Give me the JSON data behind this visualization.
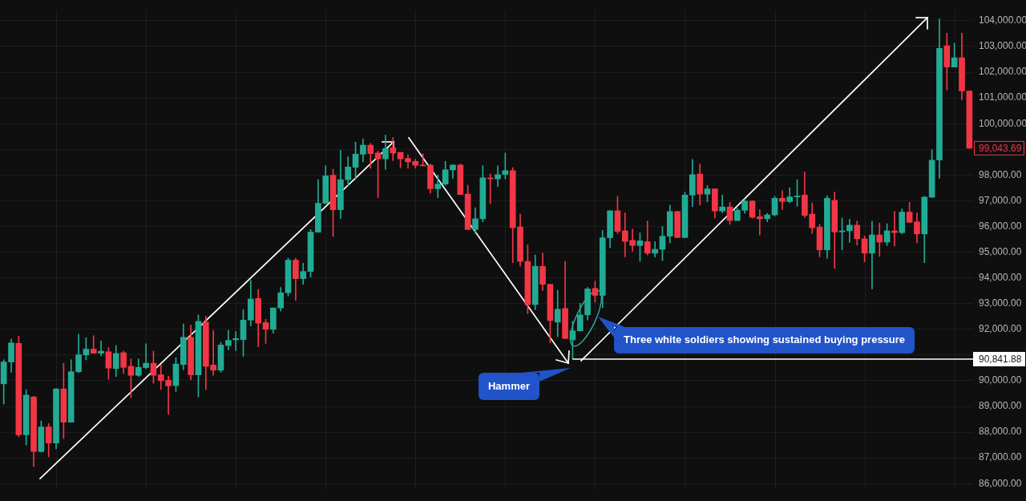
{
  "chart_data": {
    "type": "candlestick",
    "categories": [
      null,
      null,
      null,
      null,
      null,
      null,
      null,
      null,
      null,
      null,
      null,
      null,
      null,
      null,
      null,
      null,
      null,
      null,
      null,
      null,
      null,
      null,
      null,
      null,
      null,
      null,
      null,
      null,
      null,
      null,
      null,
      null,
      null,
      null,
      null,
      null,
      null,
      null,
      null,
      null,
      null,
      null,
      null,
      null,
      null,
      null,
      null,
      null,
      null,
      null,
      null,
      null,
      null,
      null,
      null,
      null,
      null,
      null,
      null,
      null,
      null,
      null,
      null,
      null,
      null,
      null,
      null,
      null,
      null,
      null,
      null,
      null,
      null,
      null,
      null,
      null,
      null,
      null,
      null,
      null,
      null,
      null,
      null,
      null,
      null,
      null,
      null,
      null,
      null,
      null,
      null,
      null,
      null,
      null,
      null,
      null,
      null,
      null,
      null,
      null,
      null,
      null,
      null,
      null,
      null,
      null,
      null,
      null,
      null,
      null,
      null,
      null,
      null,
      null,
      null,
      null,
      null,
      null,
      null,
      null,
      null,
      null,
      null,
      null,
      null,
      null,
      null,
      null,
      null,
      null
    ],
    "ohlc": [
      [
        89880,
        90820,
        89090,
        90730
      ],
      [
        90730,
        91620,
        90330,
        91470
      ],
      [
        91450,
        91740,
        87820,
        87900
      ],
      [
        87900,
        89650,
        87500,
        89440
      ],
      [
        89370,
        89400,
        86660,
        87250
      ],
      [
        87240,
        88440,
        87230,
        88200
      ],
      [
        88200,
        88340,
        87050,
        87580
      ],
      [
        87580,
        89700,
        87350,
        89680
      ],
      [
        89680,
        90680,
        87750,
        88390
      ],
      [
        88390,
        90820,
        88390,
        90350
      ],
      [
        90350,
        91810,
        90310,
        91010
      ],
      [
        91000,
        91670,
        90810,
        91230
      ],
      [
        91230,
        91750,
        91070,
        91070
      ],
      [
        91070,
        91550,
        90970,
        91150
      ],
      [
        91130,
        91290,
        90060,
        90490
      ],
      [
        90470,
        91370,
        90160,
        91060
      ],
      [
        91090,
        91150,
        90280,
        90520
      ],
      [
        90560,
        90850,
        89340,
        90210
      ],
      [
        90210,
        90850,
        90160,
        90520
      ],
      [
        90510,
        91440,
        90460,
        90680
      ],
      [
        90680,
        91150,
        89900,
        90210
      ],
      [
        90230,
        90610,
        89660,
        90000
      ],
      [
        90020,
        90180,
        88690,
        89800
      ],
      [
        89810,
        90900,
        89580,
        90650
      ],
      [
        90630,
        92210,
        90430,
        91690
      ],
      [
        91690,
        92160,
        90030,
        90230
      ],
      [
        90230,
        92560,
        89370,
        92310
      ],
      [
        92280,
        92510,
        89660,
        90560
      ],
      [
        90610,
        91950,
        90210,
        90410
      ],
      [
        90410,
        91490,
        90330,
        91390
      ],
      [
        91370,
        91960,
        91200,
        91570
      ],
      [
        91590,
        91910,
        91170,
        91640
      ],
      [
        91600,
        92760,
        90950,
        92360
      ],
      [
        92360,
        93900,
        92130,
        93180
      ],
      [
        93200,
        93550,
        91320,
        92240
      ],
      [
        92260,
        92390,
        91450,
        92000
      ],
      [
        92000,
        92830,
        91850,
        92830
      ],
      [
        92830,
        93630,
        92710,
        93420
      ],
      [
        93420,
        94770,
        93300,
        94690
      ],
      [
        94690,
        94770,
        93130,
        93970
      ],
      [
        93970,
        94570,
        93750,
        94250
      ],
      [
        94250,
        95880,
        94030,
        95780
      ],
      [
        95780,
        97820,
        95770,
        96900
      ],
      [
        96900,
        98360,
        96880,
        97970
      ],
      [
        97990,
        98230,
        95610,
        96650
      ],
      [
        96650,
        98960,
        96310,
        97820
      ],
      [
        97820,
        98710,
        97570,
        98310
      ],
      [
        98300,
        99280,
        97840,
        98810
      ],
      [
        98810,
        99400,
        98510,
        99160
      ],
      [
        99160,
        99230,
        98260,
        98830
      ],
      [
        98860,
        98930,
        97120,
        98630
      ],
      [
        98630,
        99550,
        98220,
        99030
      ],
      [
        99060,
        99460,
        98560,
        98860
      ],
      [
        98880,
        98880,
        98290,
        98630
      ],
      [
        98650,
        98790,
        98260,
        98510
      ],
      [
        98530,
        98610,
        98260,
        98380
      ],
      [
        98390,
        98830,
        98360,
        98360
      ],
      [
        98380,
        98430,
        97300,
        97470
      ],
      [
        97470,
        98000,
        97120,
        97650
      ],
      [
        97650,
        98530,
        97600,
        98200
      ],
      [
        98200,
        98390,
        97870,
        98390
      ],
      [
        98390,
        98430,
        97240,
        97240
      ],
      [
        97260,
        97600,
        95880,
        95880
      ],
      [
        95880,
        96730,
        95730,
        96300
      ],
      [
        96300,
        98360,
        96180,
        97890
      ],
      [
        97890,
        98040,
        96880,
        97850
      ],
      [
        97850,
        98360,
        97550,
        98020
      ],
      [
        98020,
        98860,
        97850,
        98170
      ],
      [
        98170,
        98290,
        94590,
        95950
      ],
      [
        95980,
        96480,
        94450,
        94640
      ],
      [
        94640,
        95290,
        92610,
        92960
      ],
      [
        92960,
        94890,
        92760,
        94450
      ],
      [
        94450,
        94960,
        93520,
        93750
      ],
      [
        93750,
        93750,
        91470,
        92340
      ],
      [
        92280,
        93520,
        91720,
        92780
      ],
      [
        92810,
        94640,
        91640,
        91640
      ],
      [
        91590,
        92310,
        90841.88,
        91940
      ],
      [
        91940,
        93010,
        91930,
        92560
      ],
      [
        92560,
        93630,
        92360,
        93570
      ],
      [
        93590,
        93870,
        93060,
        93320
      ],
      [
        93320,
        95850,
        92840,
        95560
      ],
      [
        95560,
        96610,
        95170,
        96610
      ],
      [
        96610,
        97170,
        95730,
        95810
      ],
      [
        95830,
        96530,
        94820,
        95420
      ],
      [
        95460,
        95900,
        95040,
        95260
      ],
      [
        95260,
        95750,
        94640,
        95440
      ],
      [
        95410,
        96210,
        94890,
        94960
      ],
      [
        94960,
        95410,
        94810,
        95110
      ],
      [
        95110,
        96000,
        94670,
        95620
      ],
      [
        95620,
        96830,
        95360,
        96580
      ],
      [
        96580,
        96600,
        95560,
        95570
      ],
      [
        95570,
        97340,
        95560,
        97220
      ],
      [
        97220,
        98610,
        96770,
        98020
      ],
      [
        98040,
        98430,
        96830,
        97260
      ],
      [
        97260,
        97590,
        96950,
        97460
      ],
      [
        97460,
        97460,
        96330,
        96600
      ],
      [
        96600,
        97220,
        96530,
        96760
      ],
      [
        96760,
        96940,
        96080,
        96230
      ],
      [
        96230,
        96710,
        96230,
        96630
      ],
      [
        96630,
        97060,
        96510,
        96990
      ],
      [
        96990,
        97000,
        96310,
        96360
      ],
      [
        96380,
        96650,
        95670,
        96300
      ],
      [
        96300,
        96510,
        96180,
        96450
      ],
      [
        96450,
        97170,
        96410,
        97100
      ],
      [
        97100,
        97390,
        96660,
        96970
      ],
      [
        96970,
        97500,
        96920,
        97150
      ],
      [
        97150,
        97820,
        96780,
        97180
      ],
      [
        97220,
        98120,
        96350,
        96430
      ],
      [
        96480,
        96920,
        95730,
        95950
      ],
      [
        95970,
        96080,
        94820,
        95090
      ],
      [
        95090,
        97200,
        94760,
        97100
      ],
      [
        97020,
        97340,
        94370,
        95780
      ],
      [
        95790,
        96330,
        95090,
        95830
      ],
      [
        95830,
        96280,
        95390,
        96050
      ],
      [
        96050,
        96210,
        95270,
        95520
      ],
      [
        95520,
        95630,
        94620,
        94960
      ],
      [
        94960,
        96210,
        93570,
        95670
      ],
      [
        95670,
        96130,
        94840,
        95390
      ],
      [
        95390,
        96110,
        95260,
        95830
      ],
      [
        95830,
        96590,
        95240,
        95760
      ],
      [
        95760,
        96680,
        95710,
        96560
      ],
      [
        96560,
        96940,
        96160,
        96160
      ],
      [
        96180,
        96530,
        95360,
        95710
      ],
      [
        95710,
        97170,
        94590,
        97140
      ],
      [
        97140,
        98980,
        97120,
        98580
      ],
      [
        98580,
        104070,
        97870,
        102930
      ],
      [
        103030,
        103520,
        101310,
        102200
      ],
      [
        102200,
        103130,
        102200,
        102560
      ],
      [
        102560,
        103520,
        100920,
        101270
      ],
      [
        101270,
        101270,
        99043.69,
        99043.69
      ]
    ],
    "colors": [
      "#22ab94",
      "#22ab94",
      "#f23645",
      "#22ab94",
      "#f23645",
      "#22ab94",
      "#f23645",
      "#22ab94",
      "#f23645",
      "#22ab94",
      "#22ab94",
      "#22ab94",
      "#f23645",
      "#22ab94",
      "#f23645",
      "#22ab94",
      "#f23645",
      "#f23645",
      "#22ab94",
      "#22ab94",
      "#f23645",
      "#f23645",
      "#f23645",
      "#22ab94",
      "#22ab94",
      "#f23645",
      "#22ab94",
      "#f23645",
      "#f23645",
      "#22ab94",
      "#22ab94",
      "#22ab94",
      "#22ab94",
      "#22ab94",
      "#f23645",
      "#f23645",
      "#22ab94",
      "#22ab94",
      "#22ab94",
      "#f23645",
      "#22ab94",
      "#22ab94",
      "#22ab94",
      "#22ab94",
      "#f23645",
      "#22ab94",
      "#22ab94",
      "#22ab94",
      "#22ab94",
      "#f23645",
      "#f23645",
      "#22ab94",
      "#f23645",
      "#f23645",
      "#f23645",
      "#f23645",
      "#f23645",
      "#f23645",
      "#22ab94",
      "#22ab94",
      "#22ab94",
      "#f23645",
      "#f23645",
      "#22ab94",
      "#22ab94",
      "#f23645",
      "#22ab94",
      "#22ab94",
      "#f23645",
      "#f23645",
      "#f23645",
      "#22ab94",
      "#f23645",
      "#f23645",
      "#22ab94",
      "#f23645",
      "#22ab94",
      "#22ab94",
      "#22ab94",
      "#f23645",
      "#22ab94",
      "#22ab94",
      "#f23645",
      "#f23645",
      "#f23645",
      "#22ab94",
      "#f23645",
      "#22ab94",
      "#22ab94",
      "#22ab94",
      "#f23645",
      "#22ab94",
      "#22ab94",
      "#f23645",
      "#22ab94",
      "#f23645",
      "#22ab94",
      "#f23645",
      "#22ab94",
      "#22ab94",
      "#f23645",
      "#f23645",
      "#22ab94",
      "#22ab94",
      "#f23645",
      "#22ab94",
      "#22ab94",
      "#f23645",
      "#f23645",
      "#f23645",
      "#22ab94",
      "#f23645",
      "#22ab94",
      "#22ab94",
      "#f23645",
      "#f23645",
      "#22ab94",
      "#f23645",
      "#22ab94",
      "#f23645",
      "#22ab94",
      "#f23645",
      "#f23645",
      "#22ab94",
      "#22ab94",
      "#22ab94",
      "#f23645",
      "#22ab94",
      "#f23645",
      "#f23645"
    ],
    "ylim": [
      85765,
      104365
    ],
    "yticks": [
      {
        "value": 86000,
        "label": "86,000.00"
      },
      {
        "value": 87000,
        "label": "87,000.00"
      },
      {
        "value": 88000,
        "label": "88,000.00"
      },
      {
        "value": 89000,
        "label": "89,000.00"
      },
      {
        "value": 90000,
        "label": "90,000.00"
      },
      {
        "value": 91000,
        "label": null
      },
      {
        "value": 92000,
        "label": "92,000.00"
      },
      {
        "value": 93000,
        "label": "93,000.00"
      },
      {
        "value": 94000,
        "label": "94,000.00"
      },
      {
        "value": 95000,
        "label": "95,000.00"
      },
      {
        "value": 96000,
        "label": "96,000.00"
      },
      {
        "value": 97000,
        "label": "97,000.00"
      },
      {
        "value": 98000,
        "label": "98,000.00"
      },
      {
        "value": 99000,
        "label": null
      },
      {
        "value": 100000,
        "label": "100,000.00"
      },
      {
        "value": 101000,
        "label": "101,000.00"
      },
      {
        "value": 102000,
        "label": "102,000.00"
      },
      {
        "value": 103000,
        "label": "103,000.00"
      },
      {
        "value": 104000,
        "label": "104,000.00"
      }
    ],
    "grid": true,
    "tick_labels": "y",
    "ref_lines": [
      {
        "axis": "y",
        "value": 90841.88,
        "label": "90,841.88",
        "color": "#ffffff"
      }
    ],
    "annotations": [
      "Hammer",
      "Three white soldiers showing sustained buying pressure",
      "99,043.69"
    ]
  }
}
